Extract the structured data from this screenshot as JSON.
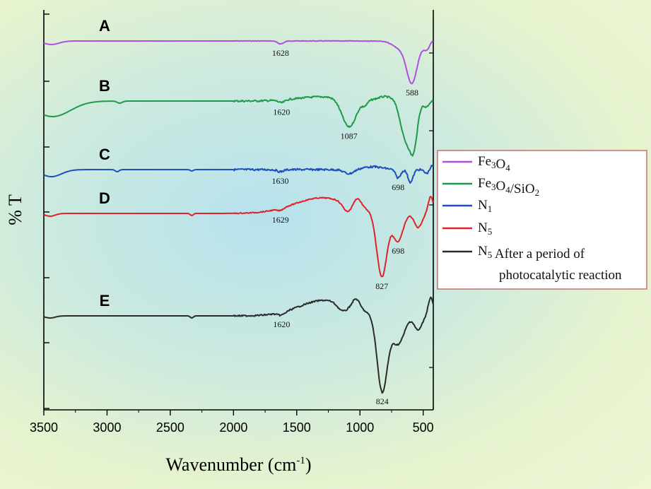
{
  "chart_data": {
    "type": "line",
    "title": "",
    "xlabel": "Wavenumber (cm",
    "xlabel_sup": "-1",
    "xlabel_close": ")",
    "ylabel": "% T",
    "xlim": [
      3500,
      420
    ],
    "x_ticks": [
      3500,
      3000,
      2500,
      2000,
      1500,
      1000,
      500
    ],
    "grid": false,
    "legend_position": "right",
    "series": [
      {
        "letter": "A",
        "name": "Fe3O4",
        "color": "#b24fe0",
        "legend": [
          {
            "t": "Fe"
          },
          {
            "t": "3",
            "sub": true
          },
          {
            "t": "O"
          },
          {
            "t": "4",
            "sub": true
          }
        ],
        "peaks": [
          {
            "x": 1628,
            "label": "1628"
          },
          {
            "x": 588,
            "label": "588"
          }
        ]
      },
      {
        "letter": "B",
        "name": "Fe3O4/SiO2",
        "color": "#1f9a4a",
        "legend": [
          {
            "t": "Fe"
          },
          {
            "t": "3",
            "sub": true
          },
          {
            "t": "O"
          },
          {
            "t": "4",
            "sub": true
          },
          {
            "t": "/SiO"
          },
          {
            "t": "2",
            "sub": true
          }
        ],
        "peaks": [
          {
            "x": 1620,
            "label": "1620"
          },
          {
            "x": 1087,
            "label": "1087"
          }
        ]
      },
      {
        "letter": "C",
        "name": "N1",
        "color": "#1e4fbf",
        "legend": [
          {
            "t": "N"
          },
          {
            "t": "1",
            "sub": true
          }
        ],
        "peaks": [
          {
            "x": 1630,
            "label": "1630"
          },
          {
            "x": 698,
            "label": "698"
          }
        ]
      },
      {
        "letter": "D",
        "name": "N5",
        "color": "#e0232b",
        "legend": [
          {
            "t": "N"
          },
          {
            "t": "5",
            "sub": true
          }
        ],
        "peaks": [
          {
            "x": 1629,
            "label": "1629"
          },
          {
            "x": 827,
            "label": "827"
          },
          {
            "x": 698,
            "label": "698"
          }
        ]
      },
      {
        "letter": "E",
        "name": "N5 After a period of photocatalytic reaction",
        "color": "#2b2b2b",
        "legend": [
          {
            "t": "N"
          },
          {
            "t": "5",
            "sub": true
          },
          {
            "t": " After a period of"
          }
        ],
        "legend_line2": "photocatalytic reaction",
        "peaks": [
          {
            "x": 1620,
            "label": "1620"
          },
          {
            "x": 824,
            "label": "824"
          }
        ]
      }
    ]
  }
}
